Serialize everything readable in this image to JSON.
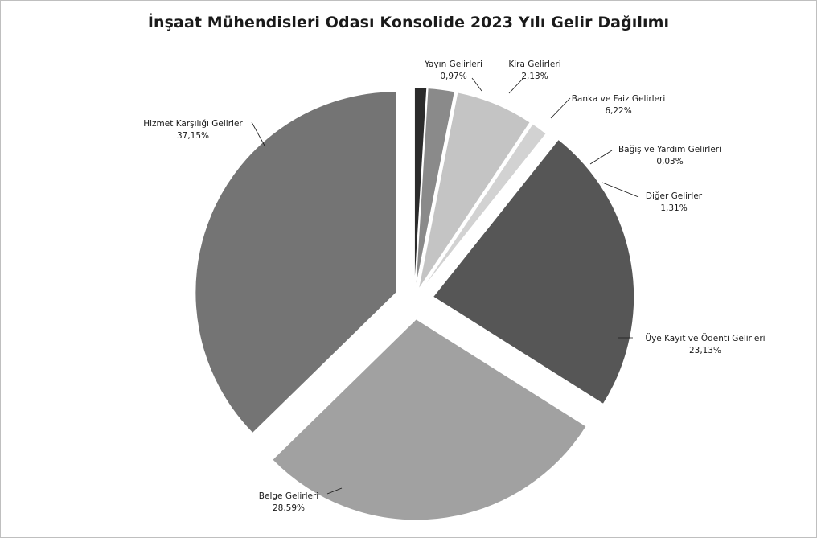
{
  "chart_data": {
    "type": "pie",
    "title": "İnşaat Mühendisleri Odası Konsolide 2023 Yılı Gelir Dağılımı",
    "start_angle_deg": 90,
    "direction": "clockwise",
    "exploded": true,
    "slices": [
      {
        "name": "Yayın Gelirleri",
        "value_label": "0,97%",
        "value": 0.97,
        "color": "#2b2b2b"
      },
      {
        "name": "Kira Gelirleri",
        "value_label": "2,13%",
        "value": 2.13,
        "color": "#8a8a8a"
      },
      {
        "name": "Banka ve Faiz Gelirleri",
        "value_label": "6,22%",
        "value": 6.22,
        "color": "#c4c4c4"
      },
      {
        "name": "Bağış ve Yardım Gelirleri",
        "value_label": "0,03%",
        "value": 0.03,
        "color": "#5e5e5e"
      },
      {
        "name": "Diğer Gelirler",
        "value_label": "1,31%",
        "value": 1.31,
        "color": "#d2d2d2"
      },
      {
        "name": "Üye Kayıt ve Ödenti Gelirleri",
        "value_label": "23,13%",
        "value": 23.13,
        "color": "#565656"
      },
      {
        "name": "Belge Gelirleri",
        "value_label": "28,59%",
        "value": 28.59,
        "color": "#a1a1a1"
      },
      {
        "name": "Hizmet Karşılığı Gelirler",
        "value_label": "37,15%",
        "value": 37.15,
        "color": "#747474"
      }
    ]
  }
}
